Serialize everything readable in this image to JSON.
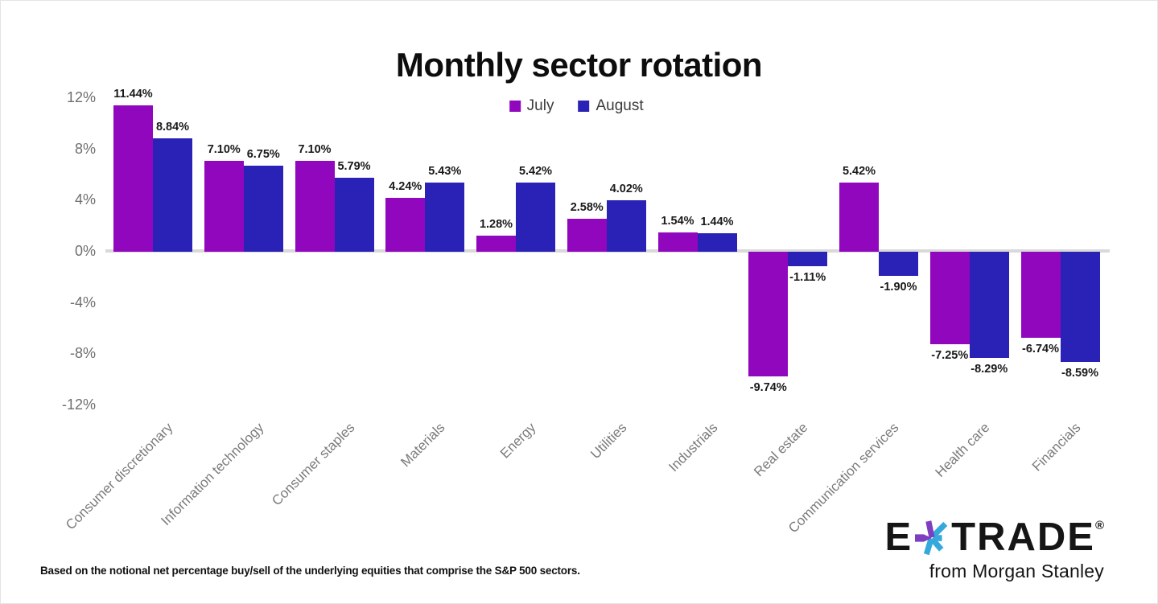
{
  "title": "Monthly sector rotation",
  "legend": {
    "items": [
      {
        "label": "July",
        "color": "#9007BE"
      },
      {
        "label": "August",
        "color": "#2A22B6"
      }
    ]
  },
  "chart_data": {
    "type": "bar",
    "title": "Monthly sector rotation",
    "categories": [
      "Consumer discretionary",
      "Information technology",
      "Consumer staples",
      "Materials",
      "Energy",
      "Utilities",
      "Industrials",
      "Real estate",
      "Communication services",
      "Health care",
      "Financials"
    ],
    "series": [
      {
        "name": "July",
        "color": "#9007BE",
        "values": [
          11.44,
          7.1,
          7.1,
          4.24,
          1.28,
          2.58,
          1.54,
          -9.74,
          5.42,
          -7.25,
          -6.74
        ]
      },
      {
        "name": "August",
        "color": "#2A22B6",
        "values": [
          8.84,
          6.75,
          5.79,
          5.43,
          5.42,
          4.02,
          1.44,
          -1.11,
          -1.9,
          -8.29,
          -8.59
        ]
      }
    ],
    "y_axis": {
      "ticks": [
        {
          "value": 12,
          "label": "12%"
        },
        {
          "value": 8,
          "label": "8%"
        },
        {
          "value": 4,
          "label": "4%"
        },
        {
          "value": 0,
          "label": "0%"
        },
        {
          "value": -4,
          "label": "-4%"
        },
        {
          "value": -8,
          "label": "-8%"
        },
        {
          "value": -12,
          "label": "-12%"
        }
      ],
      "range": [
        -12,
        12
      ]
    },
    "grid": false,
    "legend_position": "top-center",
    "value_label_format": "two decimals with % sign, below bar when negative"
  },
  "footnote": "Based on the notional net percentage buy/sell of the underlying equities that comprise the S&P 500 sectors.",
  "branding": {
    "logo_prefix": "E",
    "logo_suffix": "TRADE",
    "registered_mark": "®",
    "tagline": "from Morgan Stanley",
    "star_colors": {
      "purple": "#7D3FC0",
      "cyan": "#36A9DC"
    }
  }
}
